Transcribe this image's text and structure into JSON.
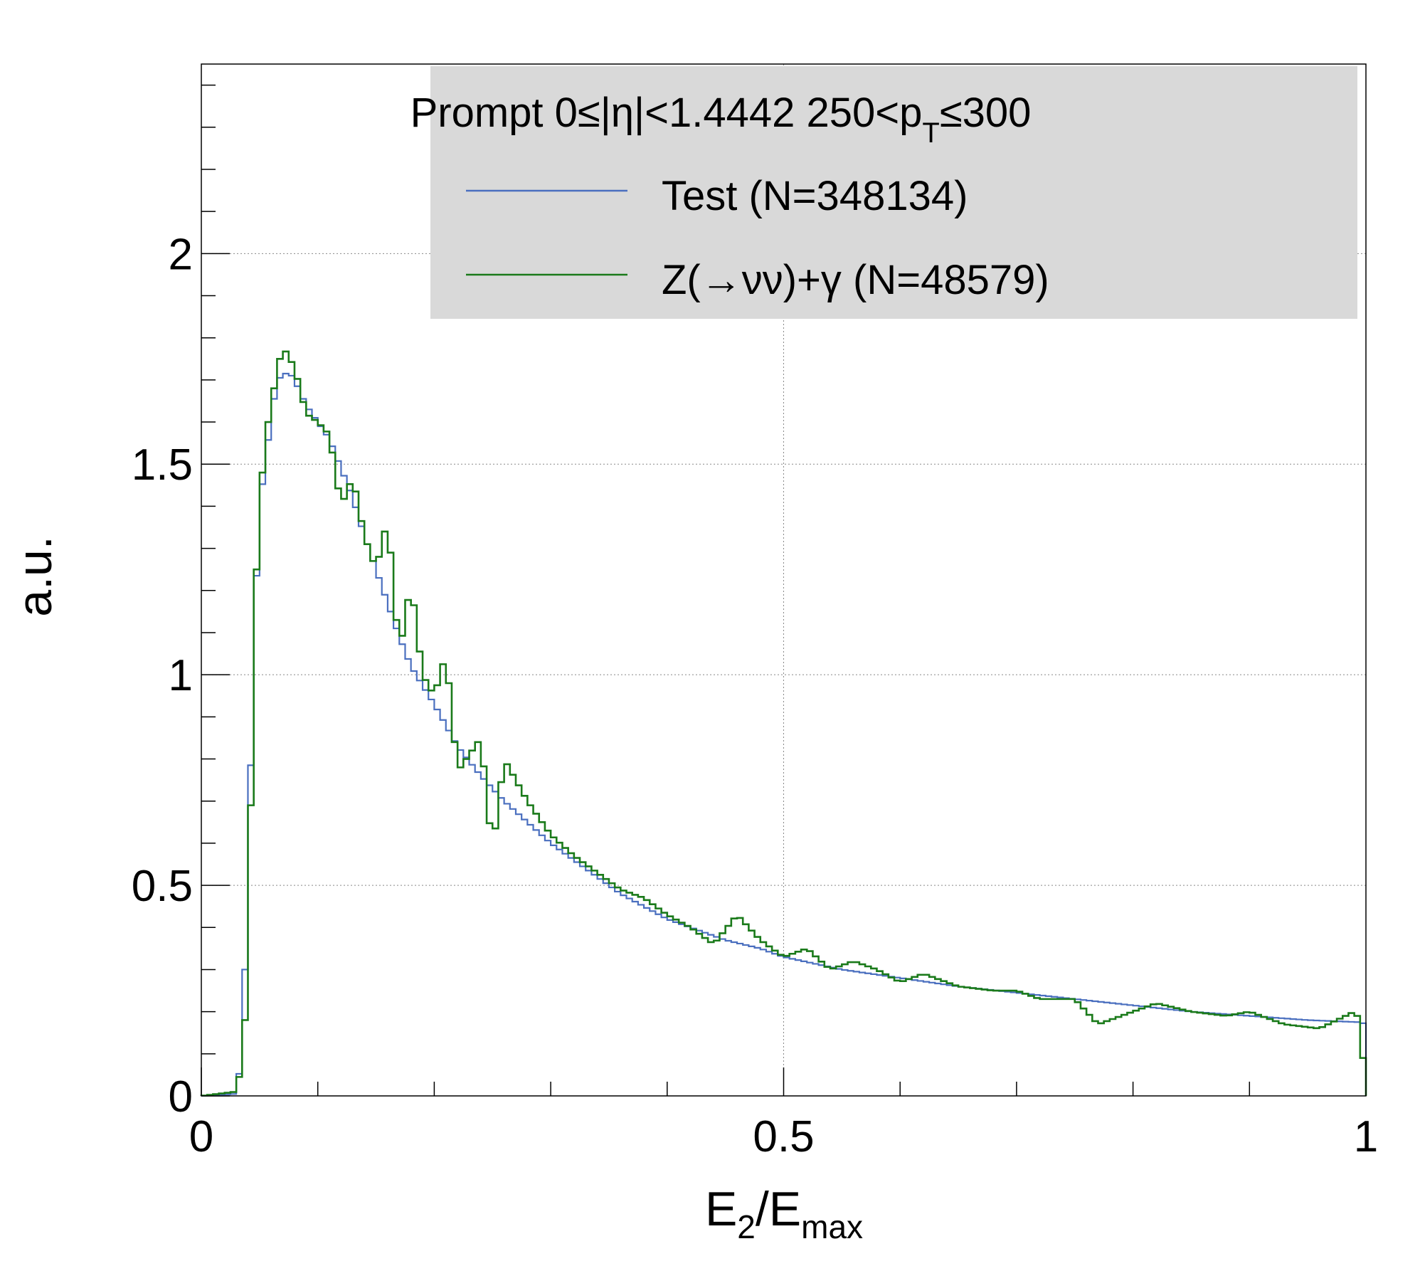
{
  "chart_data": {
    "type": "line",
    "title": "",
    "header": "Prompt  0≤|η|<1.4442  250<p_T≤300",
    "header_parts": {
      "prefix": "Prompt  0≤|η|<1.4442  250<p",
      "subscript": "T",
      "suffix": "≤300"
    },
    "xlabel": "E_2/E_max",
    "xlabel_parts": {
      "base1": "E",
      "sub1": "2",
      "mid": "/E",
      "sub2": "max"
    },
    "ylabel": "a.u.",
    "xlim": [
      0,
      1
    ],
    "ylim": [
      0,
      2.45
    ],
    "x_ticks": [
      0,
      0.5,
      1
    ],
    "x_tick_labels": [
      "0",
      "0.5",
      "1"
    ],
    "y_ticks": [
      0,
      0.5,
      1,
      1.5,
      2
    ],
    "y_tick_labels": [
      "0",
      "0.5",
      "1",
      "1.5",
      "2"
    ],
    "grid": true,
    "legend_position": "top-right",
    "n_bins": 200,
    "series": [
      {
        "name": "Test (N=348134)",
        "color": "#4a6fbf",
        "anchors": [
          [
            0.0,
            0
          ],
          [
            0.03,
            0.005
          ],
          [
            0.035,
            0.1
          ],
          [
            0.04,
            0.5
          ],
          [
            0.045,
            1.07
          ],
          [
            0.05,
            1.4
          ],
          [
            0.06,
            1.61
          ],
          [
            0.065,
            1.7
          ],
          [
            0.075,
            1.72
          ],
          [
            0.08,
            1.7
          ],
          [
            0.09,
            1.64
          ],
          [
            0.1,
            1.6
          ],
          [
            0.11,
            1.56
          ],
          [
            0.12,
            1.49
          ],
          [
            0.13,
            1.42
          ],
          [
            0.14,
            1.33
          ],
          [
            0.15,
            1.25
          ],
          [
            0.16,
            1.17
          ],
          [
            0.17,
            1.09
          ],
          [
            0.18,
            1.02
          ],
          [
            0.2,
            0.93
          ],
          [
            0.22,
            0.83
          ],
          [
            0.24,
            0.76
          ],
          [
            0.26,
            0.7
          ],
          [
            0.28,
            0.65
          ],
          [
            0.3,
            0.6
          ],
          [
            0.32,
            0.56
          ],
          [
            0.34,
            0.52
          ],
          [
            0.36,
            0.48
          ],
          [
            0.38,
            0.45
          ],
          [
            0.4,
            0.42
          ],
          [
            0.42,
            0.4
          ],
          [
            0.45,
            0.37
          ],
          [
            0.48,
            0.35
          ],
          [
            0.5,
            0.33
          ],
          [
            0.55,
            0.3
          ],
          [
            0.6,
            0.28
          ],
          [
            0.65,
            0.26
          ],
          [
            0.7,
            0.245
          ],
          [
            0.75,
            0.23
          ],
          [
            0.8,
            0.215
          ],
          [
            0.85,
            0.2
          ],
          [
            0.9,
            0.19
          ],
          [
            0.95,
            0.18
          ],
          [
            0.995,
            0.175
          ],
          [
            1.0,
            0.17
          ]
        ]
      },
      {
        "name": "Z(→νν)+γ (N=48579)",
        "color": "#1a7a1a",
        "anchors": [
          [
            0.0,
            0
          ],
          [
            0.03,
            0.01
          ],
          [
            0.035,
            0.08
          ],
          [
            0.04,
            0.28
          ],
          [
            0.045,
            1.1
          ],
          [
            0.05,
            1.4
          ],
          [
            0.055,
            1.56
          ],
          [
            0.065,
            1.72
          ],
          [
            0.07,
            1.78
          ],
          [
            0.08,
            1.73
          ],
          [
            0.09,
            1.62
          ],
          [
            0.1,
            1.6
          ],
          [
            0.11,
            1.57
          ],
          [
            0.12,
            1.4
          ],
          [
            0.13,
            1.47
          ],
          [
            0.14,
            1.33
          ],
          [
            0.15,
            1.25
          ],
          [
            0.16,
            1.37
          ],
          [
            0.17,
            1.05
          ],
          [
            0.18,
            1.22
          ],
          [
            0.19,
            1.0
          ],
          [
            0.2,
            0.95
          ],
          [
            0.21,
            1.05
          ],
          [
            0.22,
            0.77
          ],
          [
            0.24,
            0.85
          ],
          [
            0.25,
            0.58
          ],
          [
            0.26,
            0.8
          ],
          [
            0.28,
            0.7
          ],
          [
            0.3,
            0.62
          ],
          [
            0.32,
            0.57
          ],
          [
            0.34,
            0.53
          ],
          [
            0.36,
            0.49
          ],
          [
            0.38,
            0.47
          ],
          [
            0.4,
            0.43
          ],
          [
            0.42,
            0.4
          ],
          [
            0.44,
            0.36
          ],
          [
            0.46,
            0.43
          ],
          [
            0.48,
            0.37
          ],
          [
            0.5,
            0.33
          ],
          [
            0.52,
            0.35
          ],
          [
            0.54,
            0.3
          ],
          [
            0.56,
            0.32
          ],
          [
            0.58,
            0.3
          ],
          [
            0.6,
            0.27
          ],
          [
            0.62,
            0.29
          ],
          [
            0.65,
            0.26
          ],
          [
            0.68,
            0.25
          ],
          [
            0.7,
            0.25
          ],
          [
            0.72,
            0.23
          ],
          [
            0.75,
            0.23
          ],
          [
            0.77,
            0.17
          ],
          [
            0.8,
            0.2
          ],
          [
            0.82,
            0.22
          ],
          [
            0.85,
            0.2
          ],
          [
            0.88,
            0.19
          ],
          [
            0.9,
            0.2
          ],
          [
            0.93,
            0.17
          ],
          [
            0.96,
            0.16
          ],
          [
            0.99,
            0.2
          ],
          [
            0.995,
            0.18
          ],
          [
            1.0,
            0.0
          ]
        ]
      }
    ]
  }
}
